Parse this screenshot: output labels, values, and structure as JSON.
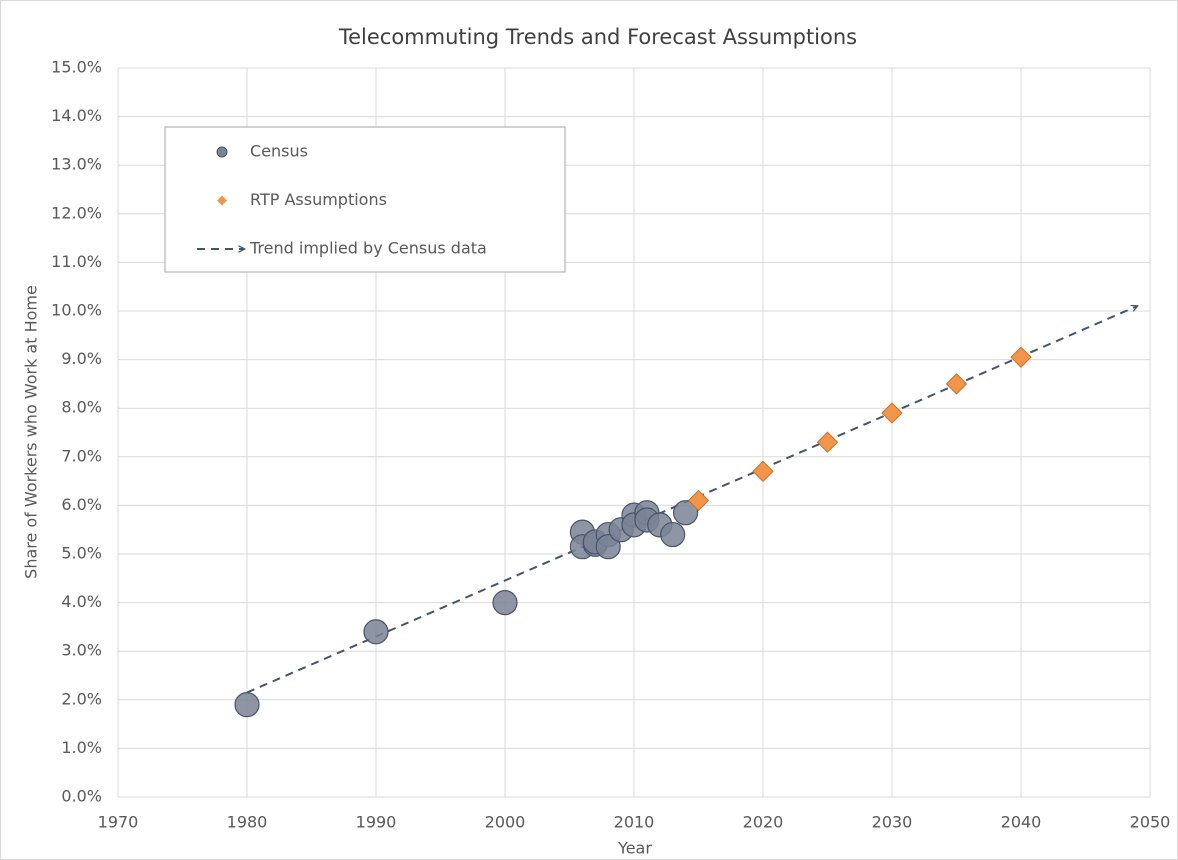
{
  "chart_data": {
    "type": "scatter",
    "title": "Telecommuting Trends and Forecast Assumptions",
    "x_label": "Year",
    "y_label": "Share of Workers who Work at Home",
    "xlim": [
      1970,
      2050
    ],
    "xticks": [
      1970,
      1980,
      1990,
      2000,
      2010,
      2020,
      2030,
      2040,
      2050
    ],
    "ylim": [
      0,
      15
    ],
    "yticks": [
      {
        "value": 0,
        "label": "0.0%"
      },
      {
        "value": 1,
        "label": "1.0%"
      },
      {
        "value": 2,
        "label": "2.0%"
      },
      {
        "value": 3,
        "label": "3.0%"
      },
      {
        "value": 4,
        "label": "4.0%"
      },
      {
        "value": 5,
        "label": "5.0%"
      },
      {
        "value": 6,
        "label": "6.0%"
      },
      {
        "value": 7,
        "label": "7.0%"
      },
      {
        "value": 8,
        "label": "8.0%"
      },
      {
        "value": 9,
        "label": "9.0%"
      },
      {
        "value": 10,
        "label": "10.0%"
      },
      {
        "value": 11,
        "label": "11.0%"
      },
      {
        "value": 12,
        "label": "12.0%"
      },
      {
        "value": 13,
        "label": "13.0%"
      },
      {
        "value": 14,
        "label": "14.0%"
      },
      {
        "value": 15,
        "label": "15.0%"
      }
    ],
    "grid": true,
    "legend": "upper left",
    "series": [
      {
        "name": "Census",
        "color": "#7a8496",
        "marker": "circle",
        "x": [
          1980,
          1990,
          2000,
          2006,
          2006,
          2007,
          2007,
          2008,
          2008,
          2009,
          2010,
          2010,
          2011,
          2011,
          2012,
          2013,
          2014
        ],
        "values": [
          1.9,
          3.4,
          4.0,
          5.45,
          5.15,
          5.2,
          5.25,
          5.4,
          5.15,
          5.5,
          5.8,
          5.6,
          5.85,
          5.7,
          5.6,
          5.4,
          5.85
        ]
      },
      {
        "name": "RTP Assumptions",
        "color": "#f0954a",
        "marker": "diamond",
        "x": [
          2015,
          2020,
          2025,
          2030,
          2035,
          2040
        ],
        "values": [
          6.1,
          6.7,
          7.3,
          7.9,
          8.5,
          9.05
        ]
      },
      {
        "name": "Trend implied by Census data",
        "color": "#44546a",
        "marker": "dashed-arrow",
        "x": [
          1980,
          2049
        ],
        "values": [
          2.15,
          10.1
        ]
      }
    ]
  }
}
